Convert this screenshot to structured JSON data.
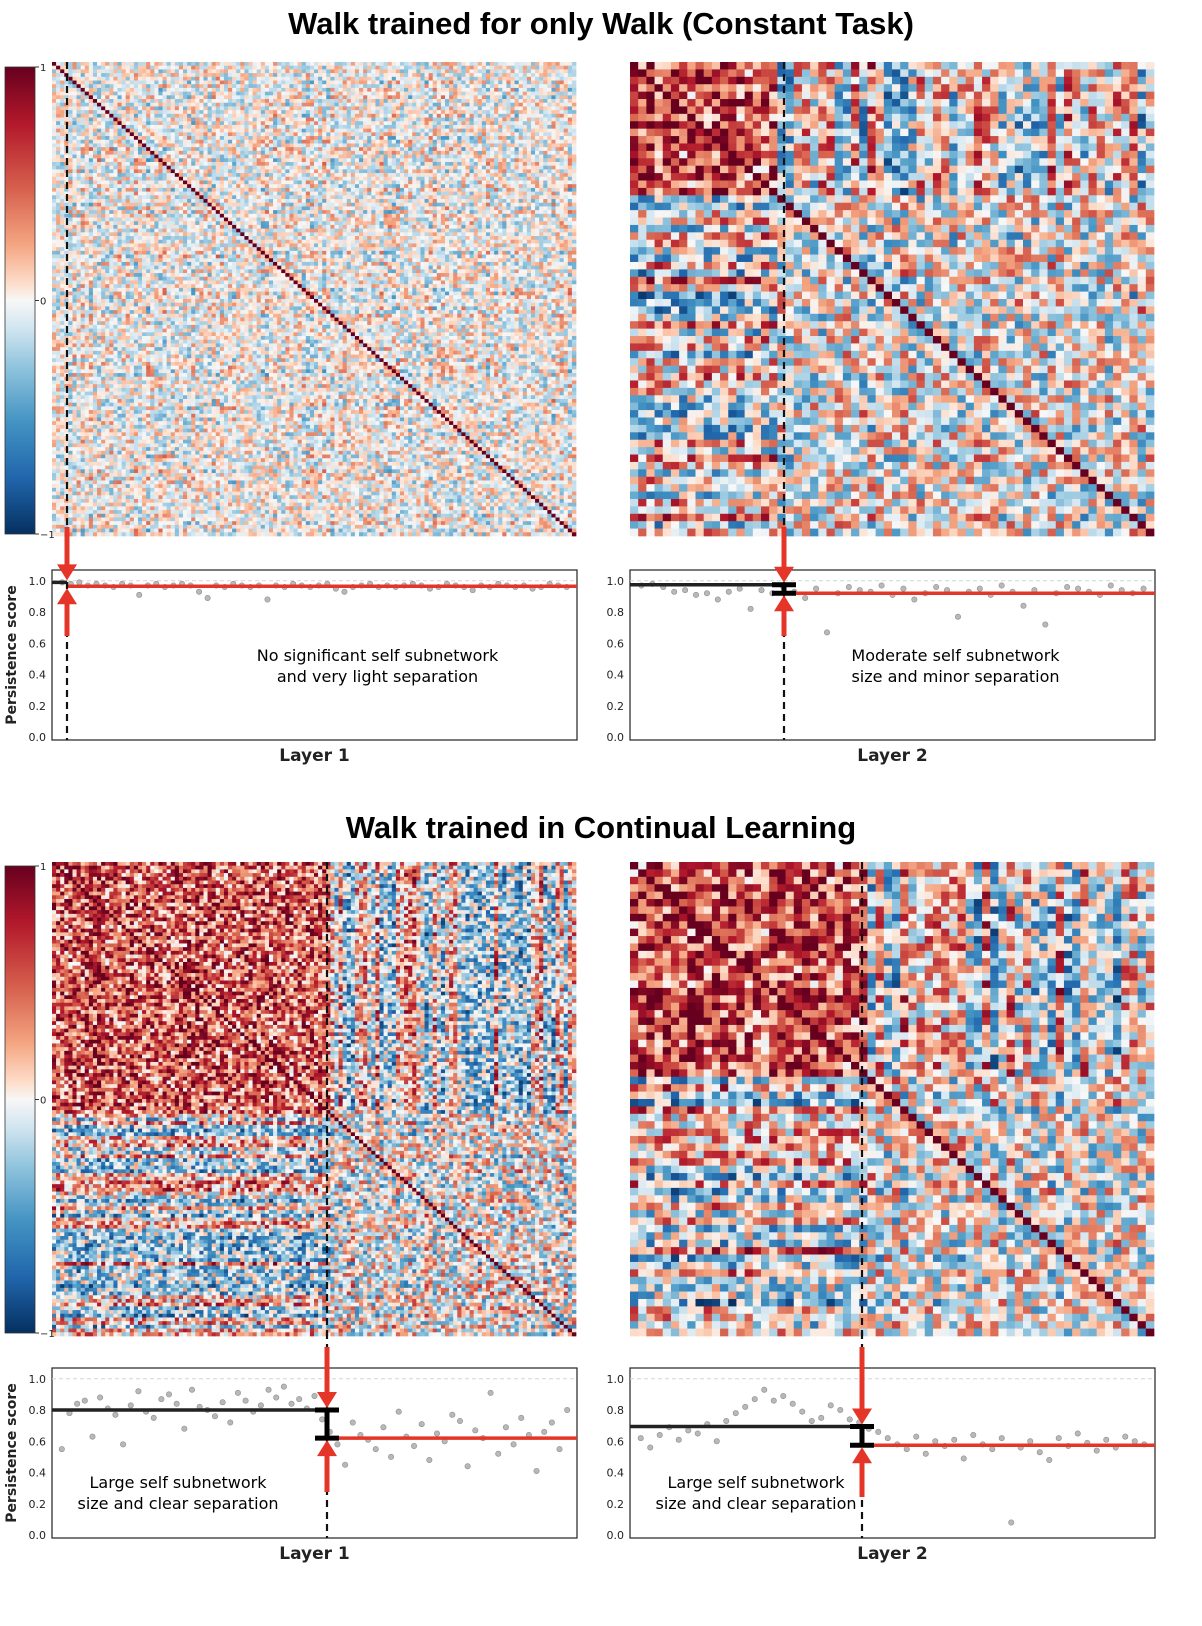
{
  "sections": [
    {
      "title": "Walk trained for only Walk (Constant Task)"
    },
    {
      "title": "Walk trained in Continual Learning"
    }
  ],
  "colorbar": {
    "ticks": [
      "1",
      "0",
      "−1"
    ],
    "colors": {
      "high": "#67001f",
      "mid": "#f7f7f7",
      "low": "#053061"
    }
  },
  "persistence_axis": {
    "ylabel": "Persistence score",
    "yticks": [
      "1.0",
      "0.8",
      "0.6",
      "0.4",
      "0.2",
      "0.0"
    ]
  },
  "colors": {
    "self_line": "#222222",
    "rest_line": "#e53528",
    "arrow": "#e53528",
    "dots": "#b0b0b0"
  },
  "chart_data": [
    {
      "type": "heatmap",
      "id": "constant_layer1",
      "description": "neuron correlation matrix, values in [-1,1], diagonal = 1",
      "n_neurons": 128,
      "self_subnetwork_size": 3,
      "block_strength": 0.0,
      "noise_level": 0.32,
      "colorbar_range": [
        -1,
        1
      ]
    },
    {
      "type": "scatter",
      "id": "constant_layer1_persistence",
      "xlabel": "Layer 1",
      "ylabel": "Persistence score",
      "ylim": [
        0,
        1
      ],
      "self_mean": 0.99,
      "rest_mean": 0.965,
      "annotation": [
        "No significant self subnetwork",
        "and very light separation"
      ],
      "points": [
        0.99,
        0.98,
        0.99,
        0.97,
        0.98,
        0.97,
        0.96,
        0.98,
        0.97,
        0.91,
        0.97,
        0.98,
        0.96,
        0.97,
        0.98,
        0.97,
        0.93,
        0.89,
        0.97,
        0.96,
        0.98,
        0.97,
        0.96,
        0.97,
        0.88,
        0.97,
        0.96,
        0.98,
        0.97,
        0.96,
        0.97,
        0.98,
        0.95,
        0.93,
        0.96,
        0.97,
        0.98,
        0.96,
        0.97,
        0.96,
        0.97,
        0.98,
        0.97,
        0.95,
        0.96,
        0.98,
        0.97,
        0.96,
        0.94,
        0.97,
        0.96,
        0.98,
        0.97,
        0.96,
        0.97,
        0.95,
        0.96,
        0.98,
        0.97,
        0.96
      ]
    },
    {
      "type": "heatmap",
      "id": "constant_layer2",
      "n_neurons": 64,
      "self_subnetwork_size": 18,
      "block_strength": 0.75,
      "noise_level": 0.55,
      "colorbar_range": [
        -1,
        1
      ]
    },
    {
      "type": "scatter",
      "id": "constant_layer2_persistence",
      "xlabel": "Layer 2",
      "ylabel": "Persistence score",
      "ylim": [
        0,
        1
      ],
      "self_mean": 0.975,
      "rest_mean": 0.92,
      "annotation": [
        "Moderate self subnetwork",
        "size and minor separation"
      ],
      "points": [
        0.97,
        0.98,
        0.96,
        0.93,
        0.94,
        0.91,
        0.92,
        0.88,
        0.93,
        0.95,
        0.82,
        0.94,
        0.92,
        0.96,
        0.93,
        0.89,
        0.95,
        0.67,
        0.92,
        0.96,
        0.94,
        0.93,
        0.97,
        0.91,
        0.95,
        0.88,
        0.92,
        0.96,
        0.94,
        0.77,
        0.93,
        0.95,
        0.91,
        0.97,
        0.93,
        0.84,
        0.94,
        0.72,
        0.92,
        0.96,
        0.95,
        0.93,
        0.91,
        0.97,
        0.94,
        0.92,
        0.95
      ]
    },
    {
      "type": "heatmap",
      "id": "continual_layer1",
      "n_neurons": 128,
      "self_subnetwork_size": 68,
      "block_strength": 0.7,
      "noise_level": 0.55,
      "colorbar_range": [
        -1,
        1
      ]
    },
    {
      "type": "scatter",
      "id": "continual_layer1_persistence",
      "xlabel": "Layer 1",
      "ylabel": "Persistence score",
      "ylim": [
        0,
        1
      ],
      "self_mean": 0.8,
      "rest_mean": 0.62,
      "annotation": [
        "Large self subnetwork",
        "size and clear separation"
      ],
      "points": [
        0.55,
        0.78,
        0.84,
        0.86,
        0.63,
        0.88,
        0.81,
        0.77,
        0.58,
        0.83,
        0.92,
        0.79,
        0.75,
        0.87,
        0.9,
        0.84,
        0.68,
        0.93,
        0.82,
        0.8,
        0.76,
        0.85,
        0.72,
        0.91,
        0.86,
        0.79,
        0.83,
        0.93,
        0.88,
        0.95,
        0.84,
        0.87,
        0.81,
        0.89,
        0.74,
        0.66,
        0.58,
        0.45,
        0.72,
        0.64,
        0.61,
        0.55,
        0.69,
        0.5,
        0.79,
        0.63,
        0.57,
        0.71,
        0.48,
        0.65,
        0.6,
        0.77,
        0.73,
        0.44,
        0.67,
        0.62,
        0.91,
        0.52,
        0.69,
        0.58,
        0.75,
        0.64,
        0.41,
        0.66,
        0.72,
        0.55,
        0.8
      ]
    },
    {
      "type": "heatmap",
      "id": "continual_layer2",
      "n_neurons": 64,
      "self_subnetwork_size": 29,
      "block_strength": 0.75,
      "noise_level": 0.55,
      "colorbar_range": [
        -1,
        1
      ]
    },
    {
      "type": "scatter",
      "id": "continual_layer2_persistence",
      "xlabel": "Layer 2",
      "ylabel": "Persistence score",
      "ylim": [
        0,
        1
      ],
      "self_mean": 0.695,
      "rest_mean": 0.575,
      "annotation": [
        "Large self subnetwork",
        "size and clear separation"
      ],
      "points": [
        0.62,
        0.56,
        0.64,
        0.69,
        0.61,
        0.67,
        0.65,
        0.71,
        0.6,
        0.73,
        0.78,
        0.82,
        0.87,
        0.93,
        0.86,
        0.89,
        0.84,
        0.79,
        0.73,
        0.75,
        0.83,
        0.8,
        0.74,
        0.72,
        0.68,
        0.66,
        0.62,
        0.58,
        0.55,
        0.63,
        0.52,
        0.6,
        0.57,
        0.61,
        0.49,
        0.64,
        0.58,
        0.55,
        0.62,
        0.08,
        0.56,
        0.6,
        0.53,
        0.48,
        0.62,
        0.57,
        0.65,
        0.59,
        0.54,
        0.61,
        0.56,
        0.63,
        0.6,
        0.58
      ]
    }
  ]
}
